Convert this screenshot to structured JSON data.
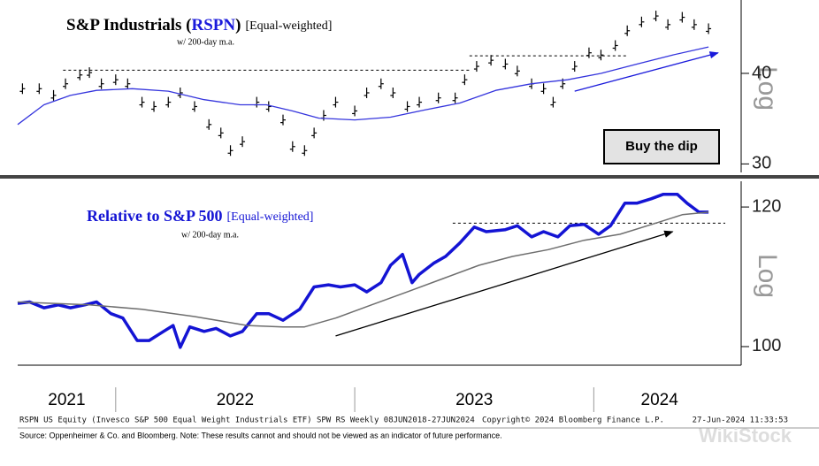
{
  "x_axis": {
    "xlim": [
      2021.59,
      2024.55
    ],
    "xticks": [
      2022,
      2023,
      2024
    ],
    "labels": [
      "2021",
      "2022",
      "2023",
      "2024"
    ]
  },
  "chart_data": [
    {
      "type": "line",
      "title": "S&P Industrials (",
      "ticker": "RSPN",
      "title_end": ")",
      "title_note": "[Equal-weighted]",
      "subtitle": "w/ 200-day m.a.",
      "y_label": "Log",
      "log": true,
      "ylim": [
        29.2,
        50.5
      ],
      "yticks": [
        30,
        40
      ],
      "annotation": "Buy the dip",
      "series": [
        {
          "style": "bars",
          "color": "#000000",
          "x": [
            2021.61,
            2021.68,
            2021.74,
            2021.79,
            2021.85,
            2021.89,
            2021.94,
            2022.0,
            2022.05,
            2022.11,
            2022.16,
            2022.22,
            2022.27,
            2022.33,
            2022.39,
            2022.44,
            2022.48,
            2022.53,
            2022.59,
            2022.64,
            2022.7,
            2022.74,
            2022.79,
            2022.83,
            2022.87,
            2022.92,
            2023.0,
            2023.05,
            2023.11,
            2023.16,
            2023.22,
            2023.27,
            2023.35,
            2023.42,
            2023.46,
            2023.51,
            2023.57,
            2023.63,
            2023.68,
            2023.74,
            2023.79,
            2023.83,
            2023.87,
            2023.92,
            2023.98,
            2024.03,
            2024.09,
            2024.14,
            2024.2,
            2024.26,
            2024.31,
            2024.37,
            2024.42,
            2024.48
          ],
          "values": [
            38.1,
            38.1,
            37.3,
            38.7,
            39.8,
            40.1,
            38.7,
            39.2,
            38.7,
            36.5,
            36.0,
            36.5,
            37.6,
            36.0,
            34.0,
            33.1,
            31.3,
            32.2,
            36.5,
            36.0,
            34.5,
            31.7,
            31.3,
            33.1,
            35.0,
            36.5,
            35.5,
            37.6,
            38.7,
            37.6,
            36.0,
            36.5,
            37.0,
            37.0,
            39.2,
            40.9,
            41.7,
            41.2,
            40.3,
            38.7,
            38.1,
            36.5,
            38.7,
            40.9,
            42.7,
            42.4,
            43.7,
            45.8,
            47.1,
            48.0,
            46.7,
            47.8,
            46.7,
            46.1
          ]
        },
        {
          "style": "line",
          "color": "#3535dd",
          "x": [
            2021.59,
            2021.7,
            2021.81,
            2021.92,
            2022.07,
            2022.22,
            2022.37,
            2022.52,
            2022.63,
            2022.74,
            2022.85,
            2023.0,
            2023.15,
            2023.29,
            2023.44,
            2023.59,
            2023.74,
            2023.89,
            2024.03,
            2024.18,
            2024.33,
            2024.48
          ],
          "values": [
            34.0,
            36.2,
            37.3,
            37.9,
            38.1,
            37.8,
            36.8,
            36.2,
            36.2,
            35.5,
            34.7,
            34.5,
            34.8,
            35.6,
            36.4,
            37.9,
            38.7,
            39.2,
            40.0,
            41.2,
            42.4,
            43.5
          ]
        }
      ],
      "reference_lines": [
        {
          "x": [
            2021.78,
            2023.48
          ],
          "value": 40.4
        },
        {
          "x": [
            2023.48,
            2024.14
          ],
          "value": 42.3
        }
      ],
      "arrows": [
        {
          "x": [
            2023.92,
            2024.52
          ],
          "values": [
            37.8,
            42.7
          ],
          "color": "#1a1adb"
        }
      ]
    },
    {
      "type": "line",
      "title": "Relative to S&P 500",
      "title_note": "[Equal-weighted]",
      "subtitle": "w/ 200-day m.a.",
      "y_label": "Log",
      "log": true,
      "ylim": [
        97.6,
        124.1
      ],
      "yticks": [
        100,
        120
      ],
      "series": [
        {
          "style": "line",
          "color": "#1414d4",
          "width": 3.5,
          "x": [
            2021.59,
            2021.64,
            2021.7,
            2021.76,
            2021.81,
            2021.87,
            2021.92,
            2021.98,
            2022.03,
            2022.09,
            2022.14,
            2022.2,
            2022.24,
            2022.27,
            2022.31,
            2022.37,
            2022.42,
            2022.48,
            2022.53,
            2022.59,
            2022.64,
            2022.7,
            2022.77,
            2022.83,
            2022.89,
            2022.94,
            2023.0,
            2023.05,
            2023.11,
            2023.15,
            2023.2,
            2023.24,
            2023.27,
            2023.33,
            2023.38,
            2023.44,
            2023.5,
            2023.55,
            2023.63,
            2023.68,
            2023.74,
            2023.79,
            2023.85,
            2023.9,
            2023.96,
            2024.02,
            2024.07,
            2024.13,
            2024.18,
            2024.24,
            2024.29,
            2024.35,
            2024.39,
            2024.44,
            2024.48
          ],
          "values": [
            105.8,
            106.0,
            105.2,
            105.6,
            105.2,
            105.6,
            106.0,
            104.4,
            103.8,
            100.8,
            100.8,
            102.0,
            102.8,
            99.9,
            102.6,
            102.0,
            102.4,
            101.4,
            102.0,
            104.4,
            104.4,
            103.5,
            105.0,
            108.1,
            108.4,
            108.1,
            108.4,
            107.4,
            108.7,
            111.2,
            112.8,
            108.7,
            109.9,
            111.5,
            112.5,
            114.5,
            116.9,
            116.2,
            116.5,
            117.1,
            115.4,
            116.2,
            115.4,
            117.1,
            117.3,
            115.8,
            117.1,
            120.6,
            120.6,
            121.3,
            122.0,
            122.0,
            120.6,
            119.2,
            119.2
          ]
        },
        {
          "style": "line",
          "color": "#6e6e6e",
          "width": 1.5,
          "x": [
            2021.59,
            2021.89,
            2022.11,
            2022.33,
            2022.55,
            2022.7,
            2022.79,
            2022.92,
            2023.07,
            2023.22,
            2023.37,
            2023.52,
            2023.66,
            2023.81,
            2023.96,
            2024.11,
            2024.26,
            2024.37,
            2024.48
          ],
          "values": [
            106.0,
            105.6,
            105.0,
            104.0,
            102.8,
            102.6,
            102.6,
            103.8,
            105.6,
            107.4,
            109.3,
            111.2,
            112.5,
            113.5,
            114.9,
            115.8,
            117.5,
            118.8,
            119.2
          ]
        }
      ],
      "reference_lines": [
        {
          "x": [
            2023.41,
            2024.55
          ],
          "value": 117.5
        }
      ],
      "arrows": [
        {
          "x": [
            2022.92,
            2024.33
          ],
          "values": [
            101.4,
            116.2
          ],
          "color": "#000000"
        }
      ]
    }
  ],
  "footer": {
    "left": "RSPN US Equity (Invesco S&P 500 Equal Weight Industrials ETF) SPW RS  Weekly 08JUN2018-27JUN2024",
    "center": "Copyright© 2024 Bloomberg Finance L.P.",
    "right": "27-Jun-2024 11:33:53",
    "source": "Source:  Oppenheimer & Co. and Bloomberg. Note: These results cannot and should not be viewed as an indicator of future performance.",
    "watermark": "WikiStock"
  }
}
